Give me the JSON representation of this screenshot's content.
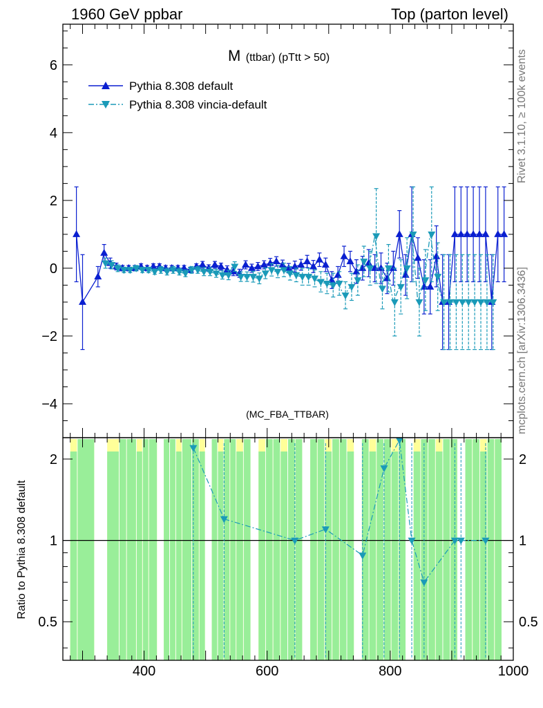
{
  "header": {
    "left_title": "1960 GeV ppbar",
    "right_title": "Top (parton level)"
  },
  "side_labels": {
    "rivet": "Rivet 3.1.10, ≥ 100k events",
    "mcplots": "mcplots.cern.ch [arXiv:1306.3436]"
  },
  "plot_title": {
    "main": "M",
    "sub": "(ttbar) (pTtt > 50)"
  },
  "analysis_id": "(MC_FBA_TTBAR)",
  "colors": {
    "default": "#0a1fd0",
    "vincia": "#1a9ab8",
    "band_green": "#99ee99",
    "band_yellow": "#ffff99"
  },
  "chart_data": [
    {
      "type": "line",
      "name": "main",
      "xlim": [
        268,
        1000
      ],
      "ylim": [
        -5,
        7.2
      ],
      "yticks": [
        -4,
        -2,
        0,
        2,
        4,
        6
      ],
      "legend": "top-left",
      "series": [
        {
          "name": "Pythia 8.308 default",
          "marker": "triangle-up",
          "linestyle": "solid",
          "x": [
            290,
            300,
            325,
            335,
            345,
            355,
            365,
            375,
            385,
            395,
            405,
            415,
            425,
            435,
            445,
            455,
            465,
            475,
            485,
            495,
            505,
            515,
            525,
            535,
            545,
            555,
            565,
            575,
            585,
            595,
            605,
            615,
            625,
            635,
            645,
            655,
            665,
            675,
            685,
            695,
            705,
            715,
            725,
            735,
            745,
            755,
            765,
            775,
            785,
            795,
            805,
            815,
            825,
            835,
            845,
            855,
            865,
            875,
            885,
            895,
            905,
            915,
            925,
            935,
            945,
            955,
            965,
            975,
            985
          ],
          "y": [
            1.0,
            -1.0,
            -0.25,
            0.45,
            0.15,
            0.05,
            0.0,
            0.0,
            0.0,
            0.05,
            0.0,
            0.05,
            0.05,
            0.0,
            0.0,
            0.0,
            0.0,
            -0.05,
            0.05,
            0.1,
            0.0,
            0.1,
            0.05,
            -0.05,
            -0.1,
            -0.15,
            0.1,
            0.0,
            0.05,
            0.1,
            0.15,
            0.2,
            0.1,
            0.0,
            0.05,
            0.1,
            0.2,
            0.05,
            0.25,
            0.1,
            -0.35,
            -0.2,
            0.35,
            0.2,
            -0.1,
            0.0,
            0.15,
            0.0,
            0.0,
            -0.3,
            0.0,
            1.0,
            -0.2,
            1.0,
            0.3,
            -0.55,
            -0.55,
            0.35,
            -1.0,
            -1.0,
            1.0,
            1.0,
            1.0,
            1.0,
            1.0,
            1.0,
            -1.0,
            1.0,
            1.0
          ],
          "err": [
            1.4,
            1.4,
            0.3,
            0.25,
            0.15,
            0.1,
            0.08,
            0.08,
            0.08,
            0.08,
            0.08,
            0.08,
            0.08,
            0.08,
            0.08,
            0.08,
            0.08,
            0.08,
            0.08,
            0.1,
            0.1,
            0.1,
            0.1,
            0.12,
            0.12,
            0.12,
            0.12,
            0.12,
            0.12,
            0.12,
            0.14,
            0.14,
            0.14,
            0.14,
            0.16,
            0.16,
            0.18,
            0.18,
            0.2,
            0.2,
            0.25,
            0.25,
            0.3,
            0.3,
            0.35,
            0.35,
            0.4,
            0.4,
            0.45,
            0.45,
            0.5,
            0.7,
            0.6,
            1.4,
            0.6,
            0.8,
            0.8,
            0.9,
            1.4,
            1.4,
            1.4,
            1.4,
            1.4,
            1.4,
            1.4,
            1.4,
            1.4,
            1.4,
            1.4
          ]
        },
        {
          "name": "Pythia 8.308 vincia-default",
          "marker": "triangle-down",
          "linestyle": "dashdot",
          "x": [
            335,
            345,
            355,
            365,
            375,
            385,
            395,
            405,
            415,
            425,
            435,
            445,
            455,
            465,
            475,
            485,
            495,
            505,
            515,
            525,
            535,
            545,
            555,
            565,
            575,
            585,
            595,
            605,
            615,
            625,
            635,
            645,
            655,
            665,
            675,
            685,
            695,
            705,
            715,
            725,
            735,
            745,
            755,
            765,
            775,
            785,
            795,
            805,
            815,
            825,
            835,
            845,
            855,
            865,
            875,
            885,
            895,
            905,
            915,
            925,
            935,
            945,
            955,
            965
          ],
          "y": [
            0.15,
            0.1,
            0.0,
            -0.05,
            -0.05,
            0.0,
            -0.05,
            -0.05,
            -0.1,
            -0.05,
            -0.1,
            -0.05,
            -0.1,
            -0.15,
            -0.05,
            -0.05,
            -0.1,
            -0.1,
            -0.15,
            -0.2,
            -0.2,
            0.05,
            -0.25,
            -0.25,
            -0.25,
            -0.3,
            -0.15,
            -0.05,
            -0.1,
            -0.05,
            -0.15,
            -0.2,
            -0.25,
            -0.25,
            -0.3,
            -0.4,
            -0.45,
            -0.5,
            -0.45,
            -0.8,
            -0.55,
            -0.35,
            0.2,
            0.0,
            0.95,
            -0.6,
            0.0,
            -1.0,
            -0.55,
            0.0,
            1.0,
            -1.0,
            -0.35,
            1.0,
            -0.25,
            -1.0,
            -1.0,
            -1.0,
            -1.0,
            -1.0,
            -1.0,
            -1.0,
            -1.0,
            -1.0
          ],
          "err": [
            0.15,
            0.12,
            0.1,
            0.08,
            0.08,
            0.08,
            0.08,
            0.08,
            0.08,
            0.1,
            0.1,
            0.1,
            0.1,
            0.1,
            0.1,
            0.1,
            0.12,
            0.12,
            0.12,
            0.12,
            0.14,
            0.14,
            0.14,
            0.14,
            0.16,
            0.16,
            0.16,
            0.18,
            0.18,
            0.2,
            0.2,
            0.2,
            0.25,
            0.25,
            0.25,
            0.3,
            0.3,
            0.35,
            0.35,
            0.4,
            0.4,
            0.45,
            0.45,
            0.5,
            1.4,
            0.6,
            0.7,
            1.0,
            0.8,
            0.9,
            1.4,
            1.0,
            0.9,
            1.4,
            1.0,
            1.4,
            1.4,
            1.4,
            1.4,
            1.4,
            1.4,
            1.4,
            1.4,
            1.4
          ]
        }
      ]
    },
    {
      "type": "scatter",
      "name": "ratio",
      "xlim": [
        268,
        1000
      ],
      "ylim": [
        0.36,
        2.4
      ],
      "ylabel": "Ratio to Pythia 8.308 default",
      "yticks": [
        0.5,
        1,
        2
      ],
      "xticks": [
        400,
        600,
        800,
        1000
      ],
      "reference_line": 1,
      "series": [
        {
          "name": "Pythia 8.308 vincia-default",
          "x": [
            480,
            530,
            645,
            695,
            755,
            790,
            815,
            835,
            855,
            905,
            915,
            955
          ],
          "y": [
            2.2,
            1.2,
            1.0,
            1.1,
            0.88,
            1.85,
            2.35,
            1.0,
            0.7,
            1.0,
            1.0,
            1.0
          ]
        }
      ],
      "band_bins": [
        280,
        292,
        320,
        340,
        360,
        372,
        388,
        398,
        408,
        422,
        432,
        442,
        452,
        462,
        478,
        490,
        500,
        510,
        520,
        530,
        540,
        550,
        562,
        574,
        586,
        598,
        610,
        622,
        634,
        646,
        658,
        670,
        682,
        694,
        706,
        718,
        730,
        742,
        754,
        766,
        778,
        790,
        802,
        814,
        826,
        838,
        850,
        862,
        874,
        886,
        898,
        910,
        922,
        934,
        946,
        958,
        970,
        982
      ]
    }
  ]
}
